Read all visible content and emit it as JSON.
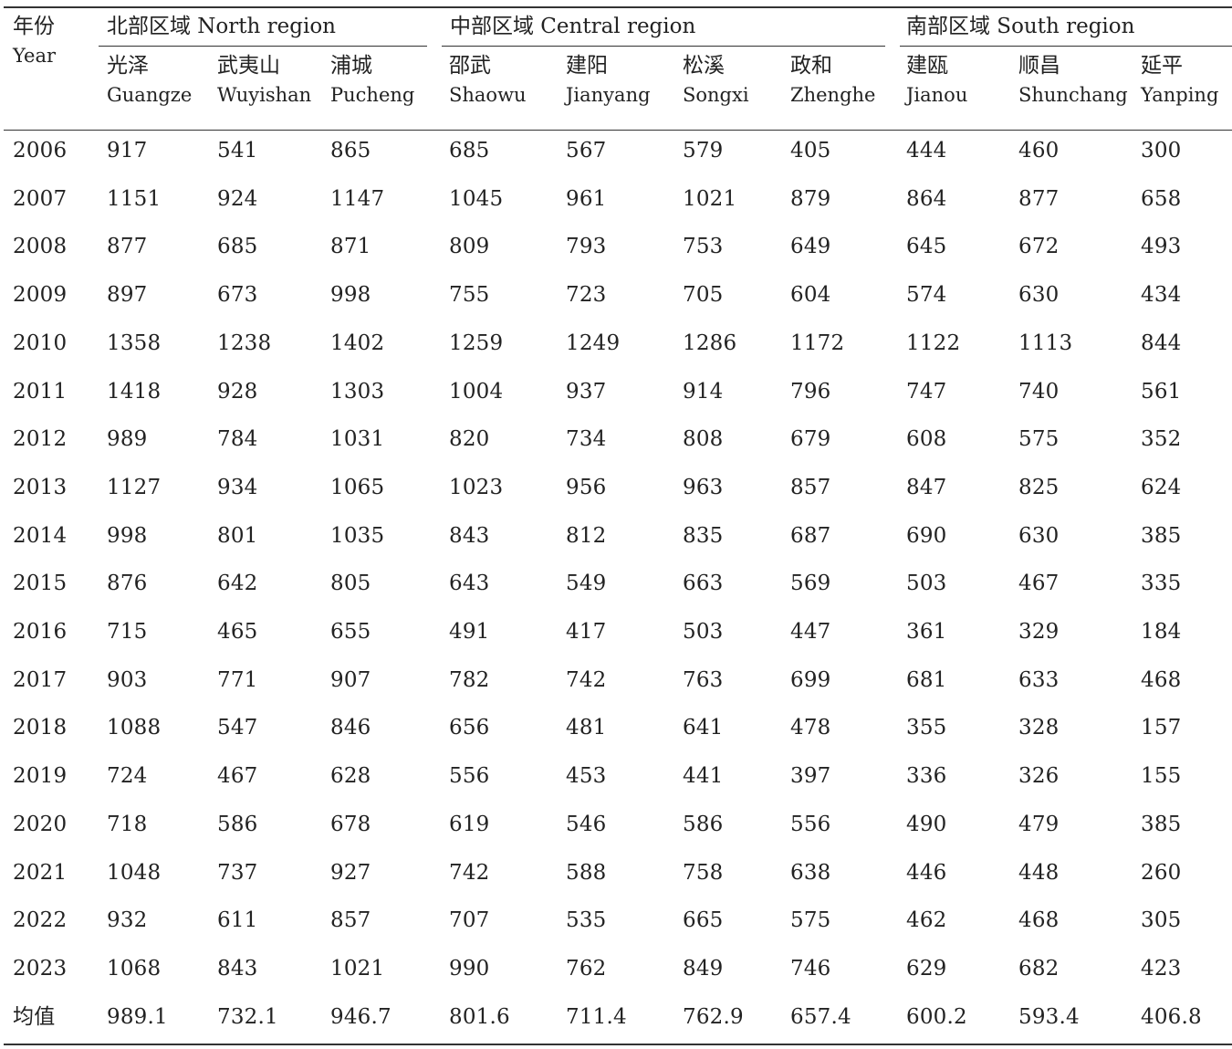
{
  "table": {
    "year_header": {
      "zh": "年份",
      "en": "Year"
    },
    "regions": [
      {
        "label": "北部区域 North region"
      },
      {
        "label": "中部区域 Central region"
      },
      {
        "label": "南部区域 South region"
      }
    ],
    "columns": [
      {
        "zh": "光泽",
        "en": "Guangze"
      },
      {
        "zh": "武夷山",
        "en": "Wuyishan"
      },
      {
        "zh": "浦城",
        "en": "Pucheng"
      },
      {
        "zh": "邵武",
        "en": "Shaowu"
      },
      {
        "zh": "建阳",
        "en": "Jianyang"
      },
      {
        "zh": "松溪",
        "en": "Songxi"
      },
      {
        "zh": "政和",
        "en": "Zhenghe"
      },
      {
        "zh": "建瓯",
        "en": "Jianou"
      },
      {
        "zh": "顺昌",
        "en": "Shunchang"
      },
      {
        "zh": "延平",
        "en": "Yanping"
      }
    ],
    "rows": [
      {
        "label": "2006",
        "values": [
          "917",
          "541",
          "865",
          "685",
          "567",
          "579",
          "405",
          "444",
          "460",
          "300"
        ]
      },
      {
        "label": "2007",
        "values": [
          "1151",
          "924",
          "1147",
          "1045",
          "961",
          "1021",
          "879",
          "864",
          "877",
          "658"
        ]
      },
      {
        "label": "2008",
        "values": [
          "877",
          "685",
          "871",
          "809",
          "793",
          "753",
          "649",
          "645",
          "672",
          "493"
        ]
      },
      {
        "label": "2009",
        "values": [
          "897",
          "673",
          "998",
          "755",
          "723",
          "705",
          "604",
          "574",
          "630",
          "434"
        ]
      },
      {
        "label": "2010",
        "values": [
          "1358",
          "1238",
          "1402",
          "1259",
          "1249",
          "1286",
          "1172",
          "1122",
          "1113",
          "844"
        ]
      },
      {
        "label": "2011",
        "values": [
          "1418",
          "928",
          "1303",
          "1004",
          "937",
          "914",
          "796",
          "747",
          "740",
          "561"
        ]
      },
      {
        "label": "2012",
        "values": [
          "989",
          "784",
          "1031",
          "820",
          "734",
          "808",
          "679",
          "608",
          "575",
          "352"
        ]
      },
      {
        "label": "2013",
        "values": [
          "1127",
          "934",
          "1065",
          "1023",
          "956",
          "963",
          "857",
          "847",
          "825",
          "624"
        ]
      },
      {
        "label": "2014",
        "values": [
          "998",
          "801",
          "1035",
          "843",
          "812",
          "835",
          "687",
          "690",
          "630",
          "385"
        ]
      },
      {
        "label": "2015",
        "values": [
          "876",
          "642",
          "805",
          "643",
          "549",
          "663",
          "569",
          "503",
          "467",
          "335"
        ]
      },
      {
        "label": "2016",
        "values": [
          "715",
          "465",
          "655",
          "491",
          "417",
          "503",
          "447",
          "361",
          "329",
          "184"
        ]
      },
      {
        "label": "2017",
        "values": [
          "903",
          "771",
          "907",
          "782",
          "742",
          "763",
          "699",
          "681",
          "633",
          "468"
        ]
      },
      {
        "label": "2018",
        "values": [
          "1088",
          "547",
          "846",
          "656",
          "481",
          "641",
          "478",
          "355",
          "328",
          "157"
        ]
      },
      {
        "label": "2019",
        "values": [
          "724",
          "467",
          "628",
          "556",
          "453",
          "441",
          "397",
          "336",
          "326",
          "155"
        ]
      },
      {
        "label": "2020",
        "values": [
          "718",
          "586",
          "678",
          "619",
          "546",
          "586",
          "556",
          "490",
          "479",
          "385"
        ]
      },
      {
        "label": "2021",
        "values": [
          "1048",
          "737",
          "927",
          "742",
          "588",
          "758",
          "638",
          "446",
          "448",
          "260"
        ]
      },
      {
        "label": "2022",
        "values": [
          "932",
          "611",
          "857",
          "707",
          "535",
          "665",
          "575",
          "462",
          "468",
          "305"
        ]
      },
      {
        "label": "2023",
        "values": [
          "1068",
          "843",
          "1021",
          "990",
          "762",
          "849",
          "746",
          "629",
          "682",
          "423"
        ]
      },
      {
        "label": "均值",
        "values": [
          "989.1",
          "732.1",
          "946.7",
          "801.6",
          "711.4",
          "762.9",
          "657.4",
          "600.2",
          "593.4",
          "406.8"
        ]
      }
    ]
  }
}
